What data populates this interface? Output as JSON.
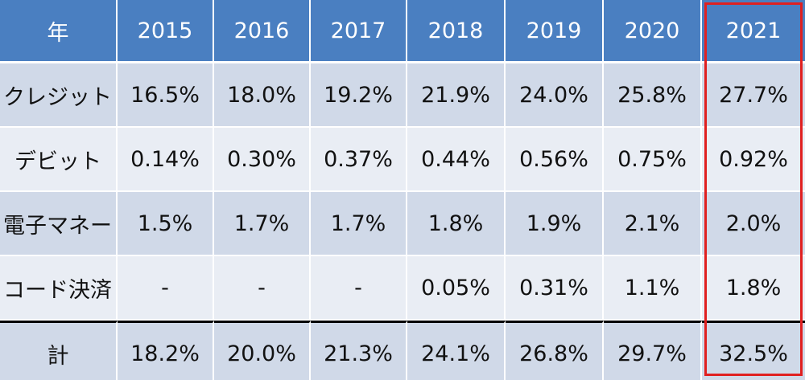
{
  "table": {
    "header": [
      "年",
      "2015",
      "2016",
      "2017",
      "2018",
      "2019",
      "2020",
      "2021"
    ],
    "rows": [
      {
        "label": "クレジット",
        "values": [
          "16.5%",
          "18.0%",
          "19.2%",
          "21.9%",
          "24.0%",
          "25.8%",
          "27.7%"
        ]
      },
      {
        "label": "デビット",
        "values": [
          "0.14%",
          "0.30%",
          "0.37%",
          "0.44%",
          "0.56%",
          "0.75%",
          "0.92%"
        ]
      },
      {
        "label": "電子マネー",
        "values": [
          "1.5%",
          "1.7%",
          "1.7%",
          "1.8%",
          "1.9%",
          "2.1%",
          "2.0%"
        ]
      },
      {
        "label": "コード決済",
        "values": [
          "-",
          "-",
          "-",
          "0.05%",
          "0.31%",
          "1.1%",
          "1.8%"
        ]
      },
      {
        "label": "計",
        "values": [
          "18.2%",
          "20.0%",
          "21.3%",
          "24.1%",
          "26.8%",
          "29.7%",
          "32.5%"
        ]
      }
    ],
    "highlighted_column": "2021"
  },
  "colors": {
    "header_bg": "#4a7fc1",
    "row_dark": "#d0d9e8",
    "row_light": "#e9edf4",
    "highlight_border": "#e02020"
  }
}
